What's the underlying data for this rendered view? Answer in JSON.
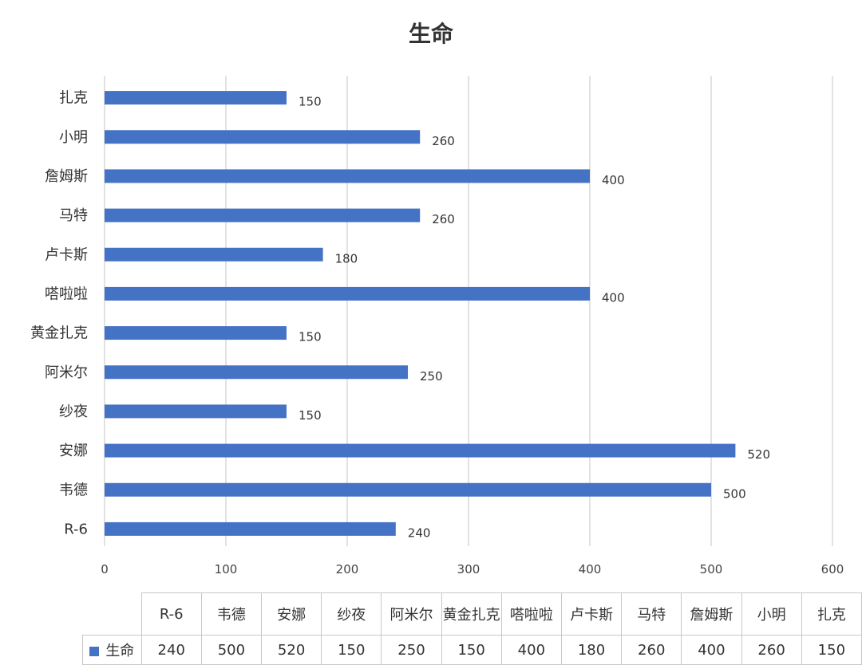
{
  "chart_data": {
    "type": "bar",
    "orientation": "horizontal",
    "title": "生命",
    "categories": [
      "R-6",
      "韦德",
      "安娜",
      "纱夜",
      "阿米尔",
      "黄金扎克",
      "嗒啦啦",
      "卢卡斯",
      "马特",
      "詹姆斯",
      "小明",
      "扎克"
    ],
    "series": [
      {
        "name": "生命",
        "values": [
          240,
          500,
          520,
          150,
          250,
          150,
          400,
          180,
          260,
          400,
          260,
          150
        ]
      }
    ],
    "xlim": [
      0,
      600
    ],
    "ticks": [
      0,
      100,
      200,
      300,
      400,
      500,
      600
    ],
    "grid": true,
    "data_table": true,
    "color": "#4472c4"
  }
}
